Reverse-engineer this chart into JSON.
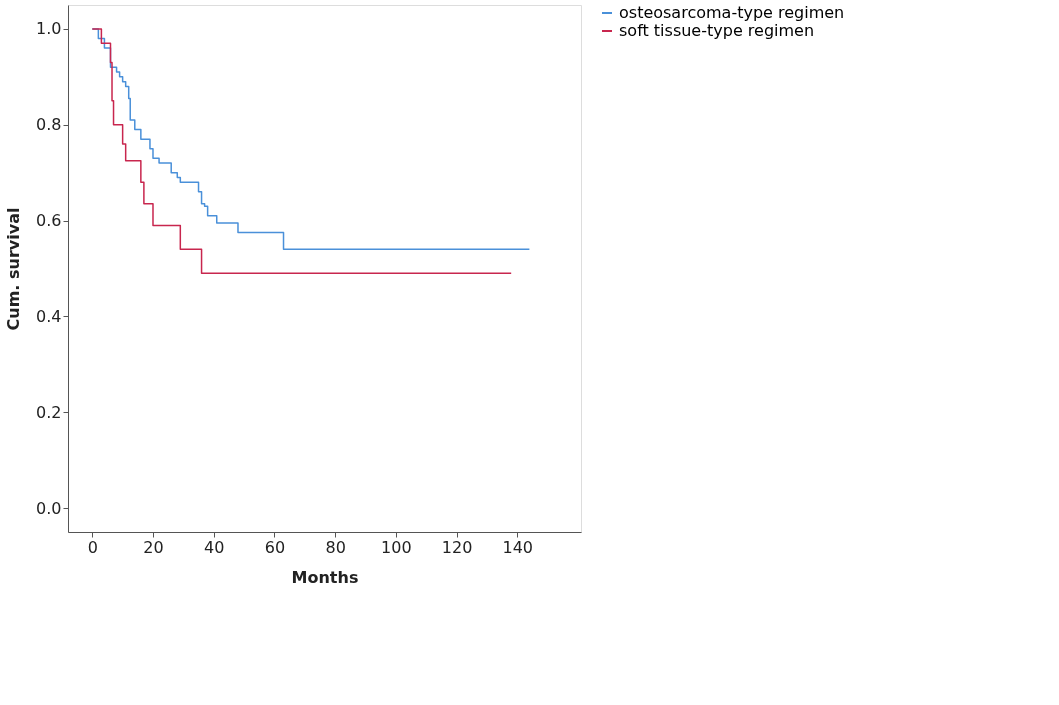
{
  "chart_data": {
    "type": "step",
    "xlabel": "Months",
    "ylabel": "Cum. survival",
    "xlim": [
      -8,
      161
    ],
    "ylim": [
      -0.05,
      1.05
    ],
    "xticks": [
      0,
      20,
      40,
      60,
      80,
      100,
      120,
      140
    ],
    "yticks": [
      {
        "value": 0,
        "label": "0.0"
      },
      {
        "value": 0.2,
        "label": "0.2"
      },
      {
        "value": 0.4,
        "label": "0.4"
      },
      {
        "value": 0.6,
        "label": "0.6"
      },
      {
        "value": 0.8,
        "label": "0.8"
      },
      {
        "value": 1,
        "label": "1.0"
      }
    ],
    "grid": false,
    "legend": "right",
    "marker": "none",
    "line_style": "solid",
    "series": [
      {
        "name": "osteosarcoma-type regimen",
        "color": "#4a90d9",
        "x": [
          0,
          2,
          4,
          6,
          8,
          9,
          10,
          11,
          12,
          12.5,
          14,
          16,
          19,
          20,
          22,
          26,
          28,
          29,
          35,
          36,
          37,
          38,
          41,
          48,
          63,
          144
        ],
        "values": [
          1.0,
          0.98,
          0.96,
          0.92,
          0.91,
          0.9,
          0.89,
          0.88,
          0.855,
          0.81,
          0.79,
          0.77,
          0.75,
          0.73,
          0.72,
          0.7,
          0.69,
          0.68,
          0.66,
          0.635,
          0.63,
          0.61,
          0.595,
          0.575,
          0.54,
          0.54
        ]
      },
      {
        "name": "soft tissue-type regimen",
        "color": "#c8264e",
        "x": [
          0,
          3,
          6,
          6.5,
          7,
          10,
          11,
          16,
          17,
          20,
          29,
          36,
          138
        ],
        "values": [
          1.0,
          0.97,
          0.93,
          0.85,
          0.8,
          0.76,
          0.725,
          0.68,
          0.635,
          0.59,
          0.54,
          0.49,
          0.49
        ]
      }
    ]
  }
}
